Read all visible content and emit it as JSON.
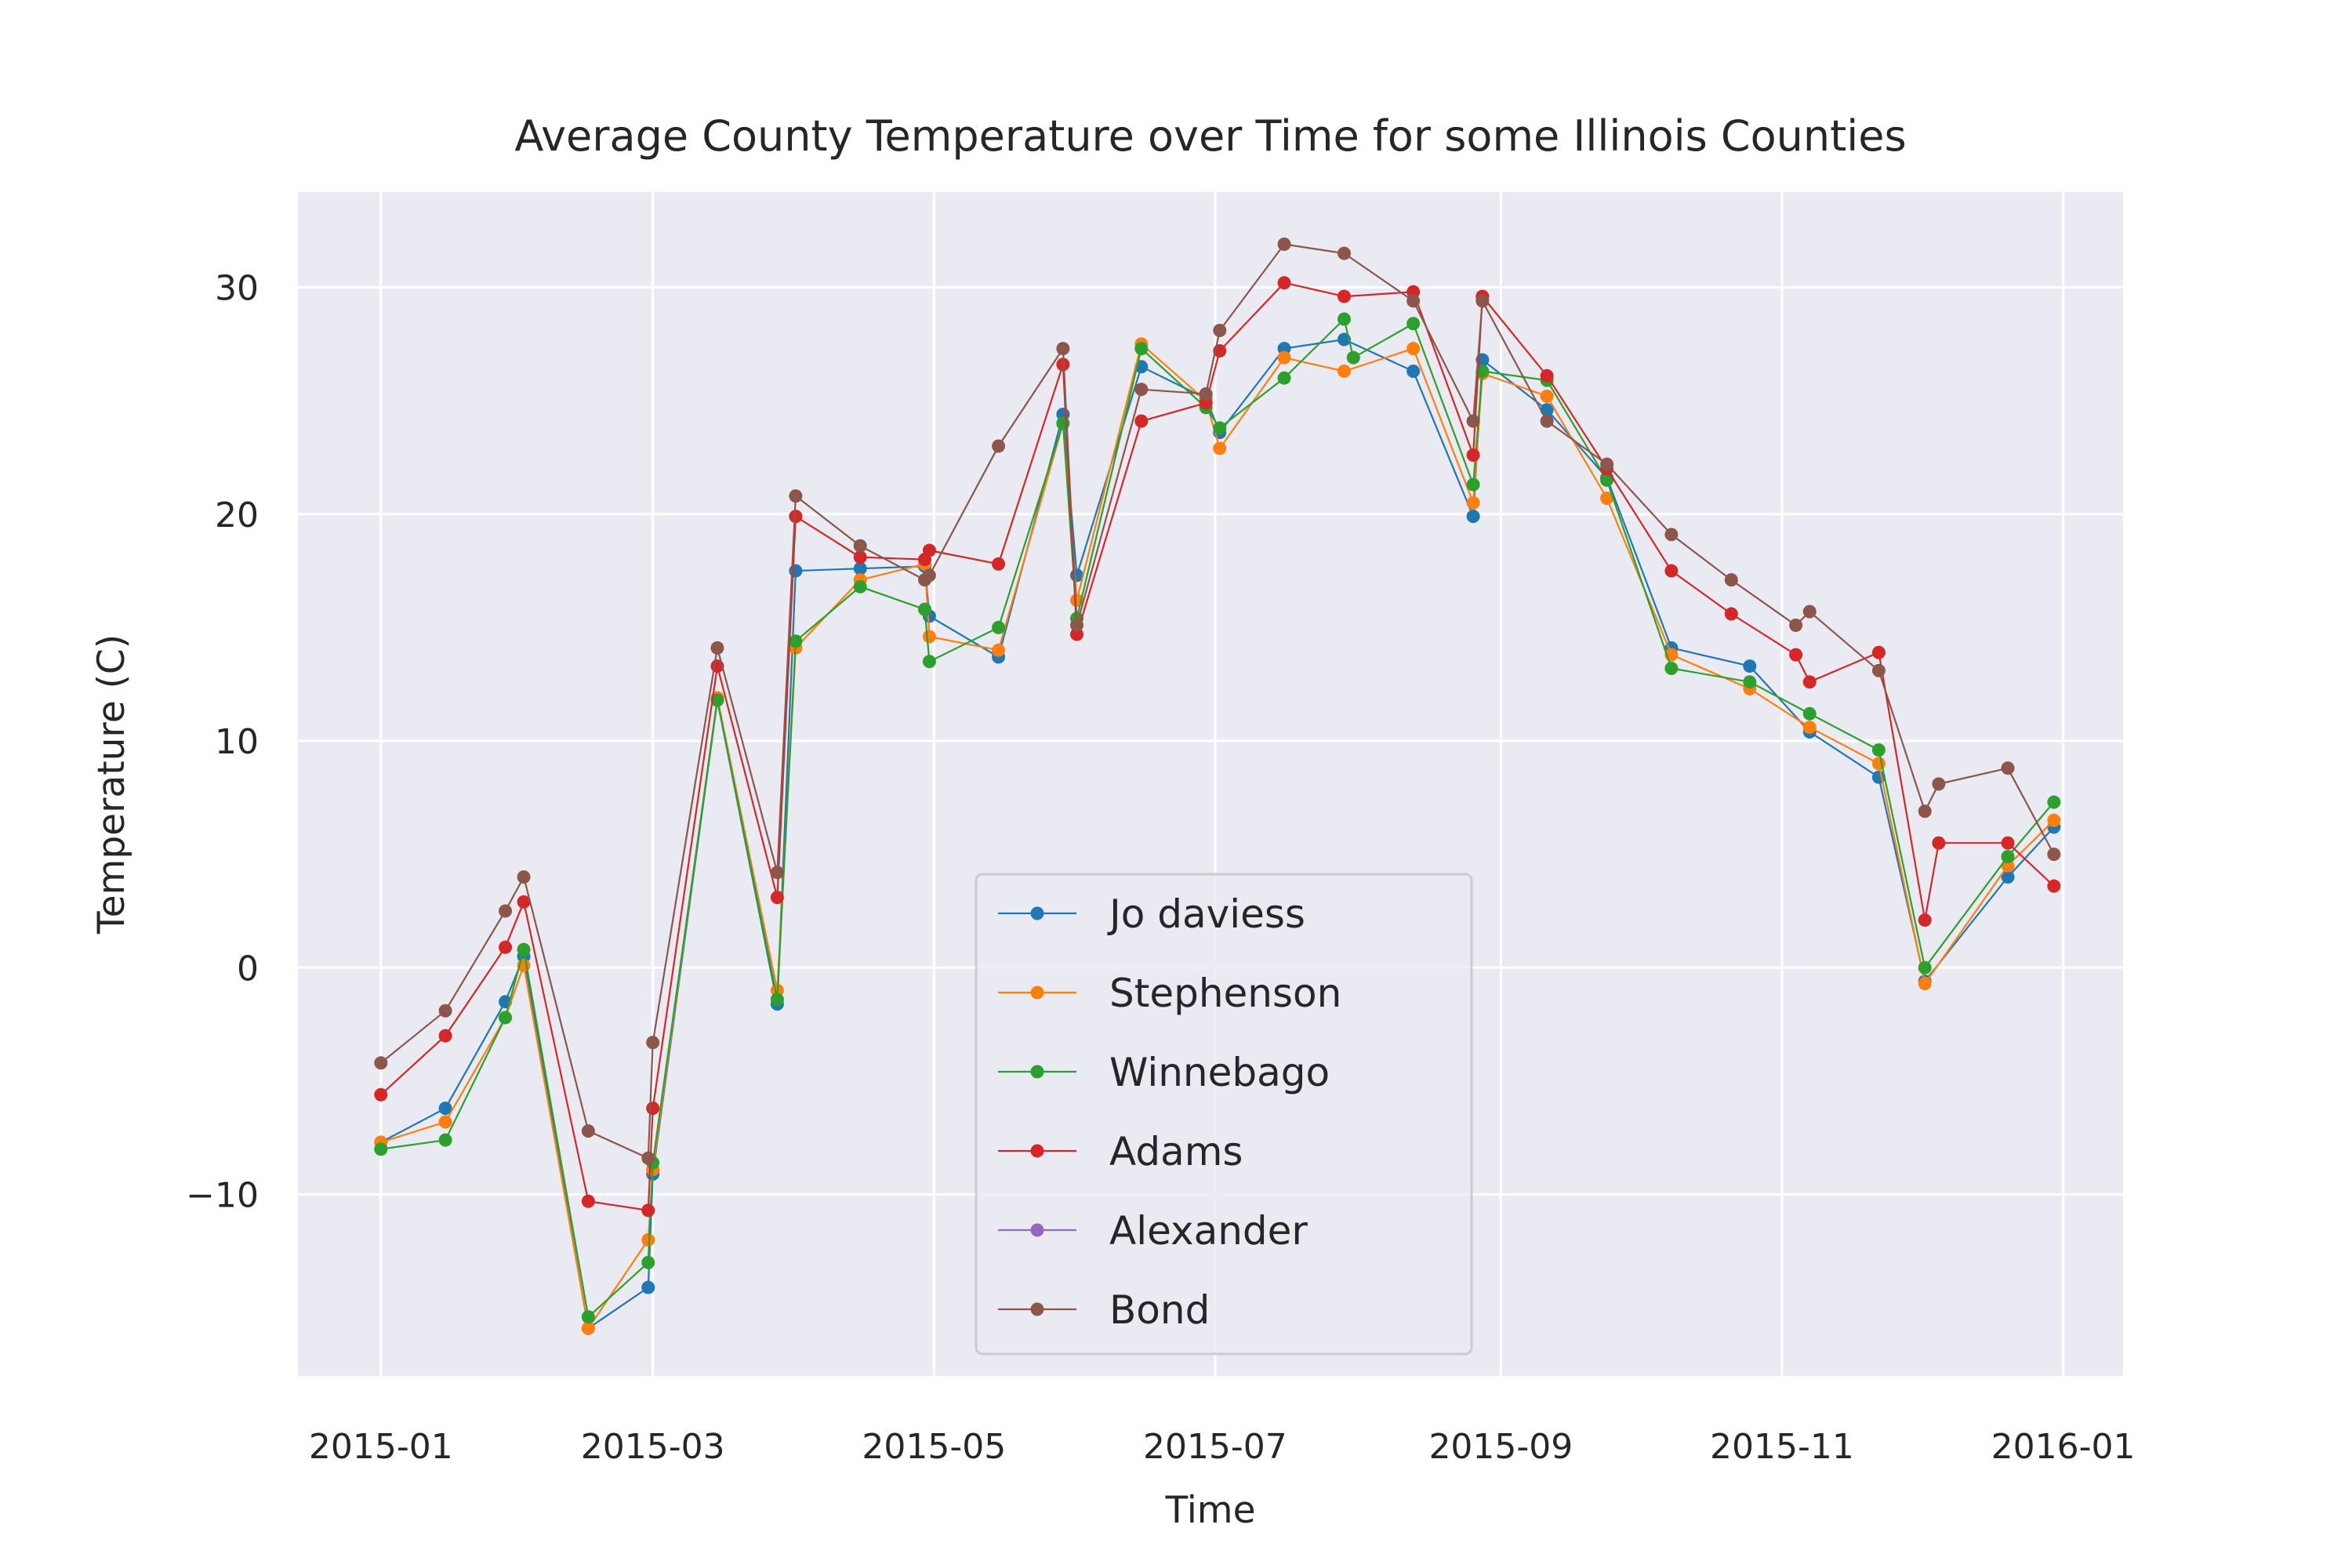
{
  "chart_data": {
    "type": "line",
    "title": "Average County Temperature over Time for some Illinois Counties",
    "xlabel": "Time",
    "ylabel": "Temperature (C)",
    "x_tick_labels": [
      "2015-01",
      "2015-03",
      "2015-05",
      "2015-07",
      "2015-09",
      "2015-11",
      "2016-01"
    ],
    "x_tick_positions": [
      0,
      59,
      120,
      181,
      243,
      304,
      365
    ],
    "y_ticks": [
      -10,
      0,
      10,
      20,
      30
    ],
    "y_tick_labels": [
      "−10",
      "0",
      "10",
      "20",
      "30"
    ],
    "xlim": [
      -18,
      378
    ],
    "ylim": [
      -18.0,
      34.2
    ],
    "grid": true,
    "legend_position": "lower-center",
    "series": [
      {
        "name": "Jo daviess",
        "color": "#1f77b4",
        "x": [
          0,
          14,
          27,
          31,
          45,
          58,
          59,
          73,
          86,
          90,
          104,
          118,
          119,
          134,
          148,
          151,
          165,
          179,
          182,
          196,
          209,
          224,
          237,
          239,
          253,
          266,
          280,
          297,
          310,
          325,
          335,
          353,
          363
        ],
        "y": [
          -7.7,
          -6.2,
          -1.5,
          0.5,
          -15.9,
          -14.1,
          -9.1,
          11.8,
          -1.6,
          17.5,
          17.6,
          17.7,
          15.5,
          13.7,
          24.4,
          17.3,
          26.5,
          25.1,
          23.6,
          27.3,
          27.7,
          26.3,
          19.9,
          26.8,
          24.6,
          21.6,
          14.1,
          13.3,
          10.4,
          8.4,
          -0.6,
          4.0,
          6.2
        ]
      },
      {
        "name": "Stephenson",
        "color": "#ff7f0e",
        "x": [
          0,
          14,
          27,
          31,
          45,
          58,
          59,
          73,
          86,
          90,
          104,
          118,
          119,
          134,
          148,
          151,
          165,
          179,
          182,
          196,
          209,
          224,
          237,
          239,
          253,
          266,
          280,
          297,
          310,
          325,
          335,
          353,
          363
        ],
        "y": [
          -7.7,
          -6.8,
          -2.2,
          0.1,
          -15.9,
          -12.0,
          -8.9,
          11.9,
          -1.0,
          14.1,
          17.1,
          17.8,
          14.6,
          14.0,
          24.0,
          16.2,
          27.5,
          25.0,
          22.9,
          26.9,
          26.3,
          27.3,
          20.5,
          26.2,
          25.2,
          20.7,
          13.8,
          12.3,
          10.6,
          9.0,
          -0.7,
          4.5,
          6.5
        ]
      },
      {
        "name": "Winnebago",
        "color": "#2ca02c",
        "x": [
          0,
          14,
          27,
          31,
          45,
          58,
          59,
          73,
          86,
          90,
          104,
          118,
          119,
          134,
          148,
          151,
          165,
          179,
          182,
          196,
          209,
          211,
          224,
          237,
          239,
          253,
          266,
          280,
          297,
          310,
          325,
          335,
          353,
          363
        ],
        "y": [
          -8.0,
          -7.6,
          -2.2,
          0.8,
          -15.4,
          -13.0,
          -8.6,
          11.8,
          -1.4,
          14.4,
          16.8,
          15.8,
          13.5,
          15.0,
          24.0,
          15.4,
          27.3,
          24.7,
          23.8,
          26.0,
          28.6,
          26.9,
          28.4,
          21.3,
          26.3,
          25.9,
          21.5,
          13.2,
          12.6,
          11.2,
          9.6,
          0.0,
          4.9,
          7.3
        ]
      },
      {
        "name": "Adams",
        "color": "#d62728",
        "x": [
          0,
          14,
          27,
          31,
          45,
          58,
          59,
          73,
          86,
          90,
          104,
          118,
          119,
          134,
          148,
          151,
          165,
          179,
          182,
          196,
          209,
          224,
          237,
          239,
          253,
          266,
          280,
          293,
          307,
          310,
          325,
          335,
          338,
          353,
          363
        ],
        "y": [
          -5.6,
          -3.0,
          0.9,
          2.9,
          -10.3,
          -10.7,
          -6.2,
          13.3,
          3.1,
          19.9,
          18.1,
          18.0,
          18.4,
          17.8,
          26.6,
          14.7,
          24.1,
          24.9,
          27.2,
          30.2,
          29.6,
          29.8,
          22.6,
          29.6,
          26.1,
          22.0,
          17.5,
          15.6,
          13.8,
          12.6,
          13.9,
          2.1,
          5.5,
          5.5,
          3.6
        ]
      },
      {
        "name": "Alexander",
        "color": "#9467bd",
        "x": [],
        "y": []
      },
      {
        "name": "Bond",
        "color": "#8c564b",
        "x": [
          0,
          14,
          27,
          31,
          45,
          58,
          59,
          73,
          86,
          90,
          104,
          118,
          119,
          134,
          148,
          151,
          165,
          179,
          182,
          196,
          209,
          224,
          237,
          239,
          253,
          266,
          280,
          293,
          307,
          310,
          325,
          335,
          338,
          353,
          363
        ],
        "y": [
          -4.2,
          -1.9,
          2.5,
          4.0,
          -7.2,
          -8.4,
          -3.3,
          14.1,
          4.2,
          20.8,
          18.6,
          17.1,
          17.3,
          23.0,
          27.3,
          15.1,
          25.5,
          25.3,
          28.1,
          31.9,
          31.5,
          29.4,
          24.1,
          29.4,
          24.1,
          22.2,
          19.1,
          17.1,
          15.1,
          15.7,
          13.1,
          6.9,
          8.1,
          8.8,
          5.0
        ]
      }
    ]
  }
}
